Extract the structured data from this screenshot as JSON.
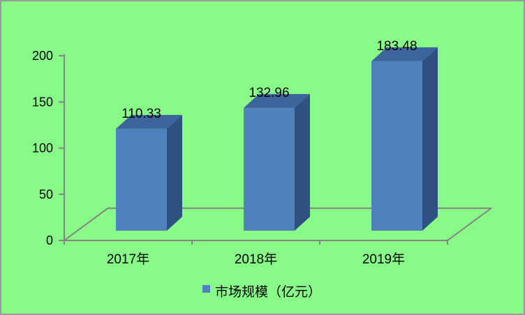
{
  "chart_data": {
    "type": "bar",
    "style": "3d-column",
    "categories": [
      "2017年",
      "2018年",
      "2019年"
    ],
    "values": [
      110.33,
      132.96,
      183.48
    ],
    "value_labels": [
      "110.33",
      "132.96",
      "183.48"
    ],
    "series_name": "市场规模（亿元）",
    "legend": {
      "position": "bottom",
      "items": [
        {
          "label": "市场规模（亿元）",
          "swatch_color": "#4f81bd"
        }
      ]
    },
    "ylim": [
      0,
      200
    ],
    "yticks": [
      0,
      50,
      100,
      150,
      200
    ],
    "ytick_labels": [
      "0",
      "50",
      "100",
      "150",
      "200"
    ],
    "grid": false,
    "colors": {
      "plot_background": "#88fa88",
      "bar_front": "#4f81bd",
      "bar_top": "#3d659b",
      "bar_side": "#2f5181",
      "axis_line": "#848484",
      "label_text": "#000000",
      "frame_border": "#9a9a9a"
    }
  }
}
